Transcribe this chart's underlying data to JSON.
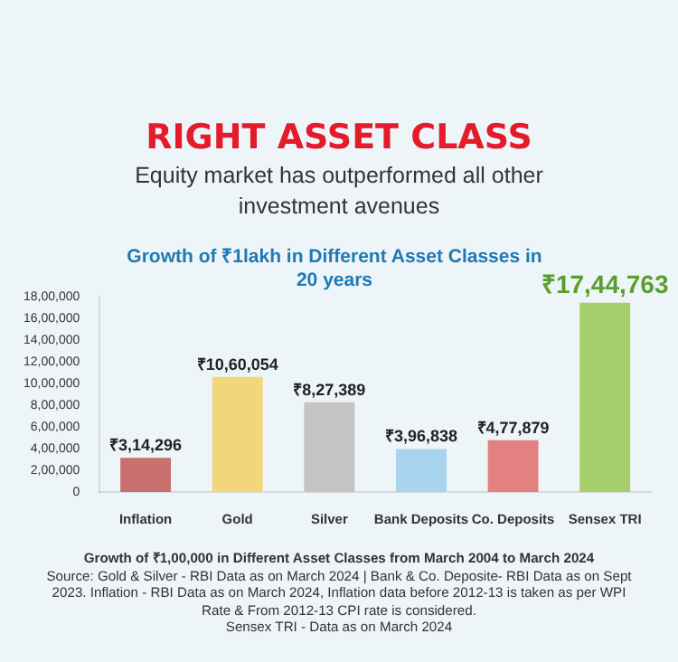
{
  "chart_data": {
    "type": "bar",
    "title": "RIGHT ASSET CLASS",
    "subtitle": "Equity market has outperformed all other investment avenues",
    "annotations": [
      "Growth of ₹1lakh in Different Asset Classes in 20 years",
      "Growth of ₹1,00,000 in Different Asset Classes from March 2004 to March 2024",
      "Source: Gold & Silver - RBI Data as on March 2024 | Bank & Co. Deposite- RBI Data as on Sept 2023. Inflation - RBI Data as on March 2024, Inflation data before 2012-13 is taken as per WPI Rate & From 2012-13 CPI rate is considered.",
      "Sensex TRI - Data as on March 2024"
    ],
    "categories": [
      "Inflation",
      "Gold",
      "Silver",
      "Bank Deposits",
      "Co. Deposits",
      "Sensex TRI"
    ],
    "values": [
      314296,
      1060054,
      827389,
      396838,
      477879,
      1744763
    ],
    "value_labels": [
      "₹3,14,296",
      "₹10,60,054",
      "₹8,27,389",
      "₹3,96,838",
      "₹4,77,879",
      "₹17,44,763"
    ],
    "colors": [
      "#c8706e",
      "#f2d67a",
      "#c4c4c4",
      "#a9d4ee",
      "#e38080",
      "#a6cf6c"
    ],
    "ylim": [
      0,
      1800000
    ],
    "yticks": [
      {
        "value": 0,
        "label": "0"
      },
      {
        "value": 200000,
        "label": "2,00,000"
      },
      {
        "value": 400000,
        "label": "4,00,000"
      },
      {
        "value": 600000,
        "label": "6,00,000"
      },
      {
        "value": 800000,
        "label": "8,00,000"
      },
      {
        "value": 1000000,
        "label": "10,00,000"
      },
      {
        "value": 1200000,
        "label": "12,00,000"
      },
      {
        "value": 1400000,
        "label": "14,00,000"
      },
      {
        "value": 1600000,
        "label": "16,00,000"
      },
      {
        "value": 1800000,
        "label": "18,00,000"
      }
    ],
    "grid": false,
    "legend": false
  }
}
